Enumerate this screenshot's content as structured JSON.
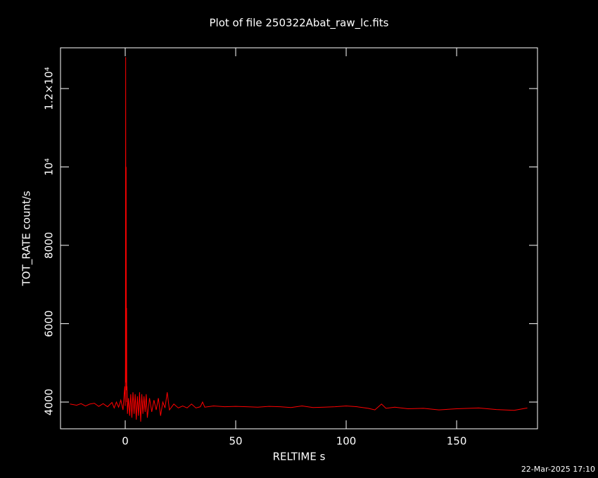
{
  "chart_data": {
    "type": "line",
    "title": "Plot of file 250322Abat_raw_lc.fits",
    "x_label": "RELTIME  s",
    "y_label": "TOT_RATE  count/s",
    "footer": "22-Mar-2025 17:10",
    "xlim": [
      -29.3,
      186.6
    ],
    "ylim": [
      3318,
      13040
    ],
    "xticks": [
      0,
      50,
      100,
      150
    ],
    "yticks": [
      4000,
      6000,
      8000,
      {
        "value": 10000,
        "label": "10⁴"
      },
      {
        "value": 12000,
        "label": "1.2×10⁴"
      }
    ],
    "series": [
      {
        "color": "#ff0000",
        "x": [
          -25,
          -22,
          -20,
          -18,
          -16,
          -14,
          -12,
          -10,
          -8,
          -6,
          -5,
          -4,
          -3,
          -2,
          -1,
          -0.5,
          -0.2,
          0,
          0.1,
          0.2,
          0.3,
          0.4,
          0.5,
          0.6,
          0.7,
          0.8,
          1,
          1.5,
          2,
          2.5,
          3,
          3.5,
          4,
          4.5,
          5,
          5.5,
          6,
          6.5,
          7,
          7.5,
          8,
          8.5,
          9,
          9.5,
          10,
          11,
          12,
          13,
          14,
          15,
          16,
          17,
          18,
          19,
          20,
          22,
          24,
          26,
          28,
          30,
          32,
          34,
          35,
          36,
          40,
          45,
          50,
          55,
          60,
          65,
          70,
          75,
          80,
          85,
          90,
          95,
          100,
          105,
          110,
          113,
          116,
          118,
          122,
          128,
          135,
          142,
          150,
          160,
          168,
          176,
          182
        ],
        "values": [
          3950,
          3920,
          3960,
          3900,
          3950,
          3970,
          3890,
          3960,
          3880,
          3990,
          3850,
          4000,
          3870,
          4050,
          3800,
          4200,
          4400,
          3900,
          5000,
          12800,
          4500,
          10000,
          4300,
          6400,
          4000,
          4400,
          3700,
          4100,
          3650,
          4200,
          3600,
          4250,
          3700,
          4200,
          3550,
          4150,
          3650,
          4250,
          3500,
          4200,
          3700,
          4150,
          3750,
          4200,
          3600,
          4100,
          3750,
          4050,
          3800,
          4100,
          3650,
          4000,
          3850,
          4250,
          3800,
          3950,
          3850,
          3900,
          3850,
          3950,
          3850,
          3880,
          4000,
          3870,
          3900,
          3880,
          3890,
          3880,
          3870,
          3890,
          3880,
          3860,
          3900,
          3860,
          3870,
          3880,
          3900,
          3880,
          3840,
          3800,
          3950,
          3840,
          3870,
          3830,
          3840,
          3800,
          3830,
          3850,
          3810,
          3790,
          3850
        ]
      }
    ]
  }
}
